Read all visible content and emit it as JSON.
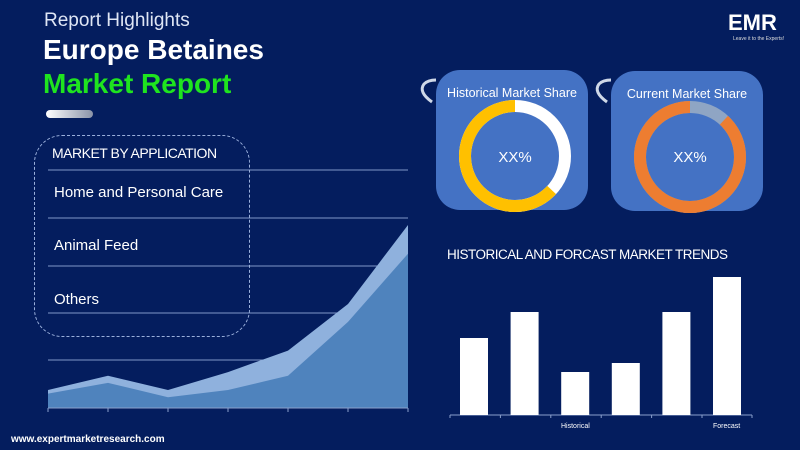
{
  "header": {
    "subtitle": "Report Highlights",
    "title_line1": "Europe Betaines",
    "title_line2": "Market Report"
  },
  "logo": {
    "text": "EMR",
    "tagline": "Leave it to the Experts!"
  },
  "application": {
    "heading": "MARKET BY APPLICATION",
    "items": [
      "Home and Personal Care",
      "Animal Feed",
      "Others"
    ]
  },
  "historical_share": {
    "title": "Historical Market Share",
    "value": "XX%",
    "colors": {
      "main": "#ffc000",
      "rest": "#ffffff"
    }
  },
  "current_share": {
    "title": "Current Market Share",
    "value": "XX%",
    "colors": {
      "main": "#ed7d31",
      "rest": "#8fa5c4"
    }
  },
  "footer": {
    "website": "www.expertmarketresearch.com"
  },
  "colors": {
    "background": "#041d5e",
    "accent": "#1fe41f",
    "card": "#4472c4"
  },
  "chart_data": [
    {
      "type": "pie",
      "title": "Historical Market Share",
      "values": [
        63,
        37
      ],
      "center_label": "XX%"
    },
    {
      "type": "pie",
      "title": "Current Market Share",
      "values": [
        88,
        12
      ],
      "center_label": "XX%"
    },
    {
      "type": "area",
      "x": [
        1,
        2,
        3,
        4,
        5,
        6,
        7
      ],
      "series": [
        {
          "values": [
            4,
            7,
            3,
            5,
            9,
            24,
            43
          ]
        },
        {
          "values": [
            5,
            9,
            5,
            10,
            16,
            29,
            51
          ]
        }
      ],
      "grid": true
    },
    {
      "type": "bar",
      "title": "HISTORICAL AND FORCAST MARKET TRENDS",
      "categories": [
        "",
        "",
        "Historical",
        "",
        "",
        "Forecast"
      ],
      "values": [
        77,
        103,
        43,
        52,
        103,
        138
      ]
    }
  ]
}
